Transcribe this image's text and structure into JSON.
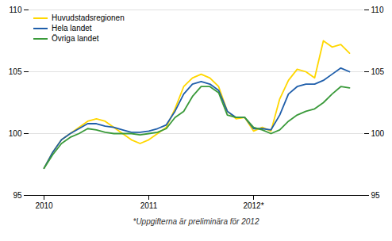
{
  "chart_data": {
    "type": "line",
    "categories": [
      "2010",
      null,
      null,
      null,
      null,
      null,
      null,
      null,
      null,
      null,
      null,
      null,
      "2011",
      null,
      null,
      null,
      null,
      null,
      null,
      null,
      null,
      null,
      null,
      null,
      "2012*",
      null,
      null,
      null,
      null,
      null,
      null,
      null,
      null,
      null,
      null,
      null
    ],
    "series": [
      {
        "name": "Huvudstadsregionen",
        "color": "#FFD700",
        "values": [
          97.2,
          98.5,
          99.5,
          100.0,
          100.5,
          101.0,
          101.2,
          101.0,
          100.5,
          100.0,
          99.5,
          99.2,
          99.5,
          100.0,
          100.5,
          102.0,
          103.8,
          104.5,
          104.8,
          104.5,
          103.8,
          101.8,
          101.2,
          101.3,
          100.2,
          100.5,
          100.2,
          102.8,
          104.3,
          105.2,
          105.0,
          104.5,
          107.5,
          107.0,
          107.2,
          106.5
        ]
      },
      {
        "name": "Hela landet",
        "color": "#1F5EAA",
        "values": [
          97.2,
          98.5,
          99.5,
          100.0,
          100.4,
          100.8,
          100.8,
          100.6,
          100.5,
          100.3,
          100.1,
          100.1,
          100.2,
          100.4,
          100.7,
          101.8,
          103.2,
          104.0,
          104.2,
          104.0,
          103.5,
          101.8,
          101.3,
          101.3,
          100.4,
          100.4,
          100.3,
          101.5,
          103.2,
          103.8,
          104.0,
          104.0,
          104.3,
          104.8,
          105.3,
          105.0
        ]
      },
      {
        "name": "Övriga landet",
        "color": "#3A9A3A",
        "values": [
          97.2,
          98.3,
          99.2,
          99.7,
          100.0,
          100.4,
          100.3,
          100.1,
          100.0,
          100.0,
          100.0,
          99.9,
          100.0,
          100.1,
          100.4,
          101.3,
          101.8,
          103.0,
          103.8,
          103.8,
          103.3,
          101.5,
          101.3,
          101.3,
          100.5,
          100.3,
          100.0,
          100.3,
          101.0,
          101.5,
          101.8,
          102.0,
          102.5,
          103.2,
          103.8,
          103.7
        ]
      }
    ],
    "ylim": [
      95,
      110
    ],
    "yticks": [
      95,
      100,
      105,
      110
    ],
    "grid": true,
    "legend": "upper left",
    "annotations": [
      "*Uppgifterna är preliminära för 2012"
    ]
  }
}
